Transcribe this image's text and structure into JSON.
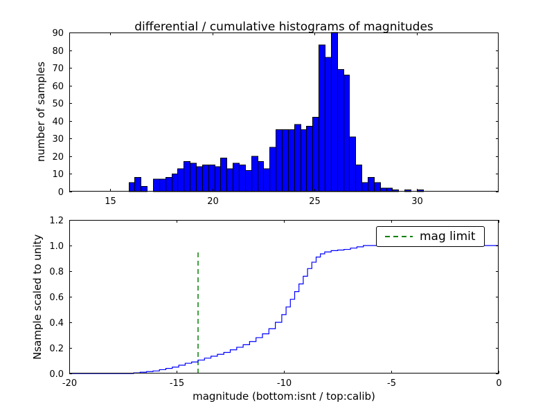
{
  "figure": {
    "background": "#ffffff"
  },
  "legend": {
    "label": "mag limit"
  },
  "chart_data": [
    {
      "type": "bar",
      "title": "differential / cumulative histograms of magnitudes",
      "xlabel": "",
      "ylabel": "number of samples",
      "xlim": [
        13,
        34
      ],
      "ylim": [
        0,
        90
      ],
      "grid": false,
      "xticks": [
        15,
        20,
        25,
        30
      ],
      "xtick_labels": [
        "15",
        "20",
        "25",
        "30"
      ],
      "yticks": [
        0,
        10,
        20,
        30,
        40,
        50,
        60,
        70,
        80,
        90
      ],
      "ytick_labels": [
        "0",
        "10",
        "20",
        "30",
        "40",
        "50",
        "60",
        "70",
        "80",
        "90"
      ],
      "bar_color": "#0000ff",
      "edge_color": "#000000",
      "bin_start": 15.9,
      "bin_width": 0.3,
      "counts": [
        5,
        8,
        3,
        0,
        7,
        7,
        8,
        10,
        13,
        17,
        16,
        14,
        15,
        15,
        14,
        19,
        13,
        16,
        15,
        12,
        20,
        17,
        13,
        25,
        35,
        35,
        35,
        38,
        35,
        37,
        42,
        83,
        76,
        90,
        69,
        66,
        31,
        15,
        5,
        8,
        5,
        2,
        2,
        1,
        0,
        1,
        0,
        1
      ]
    },
    {
      "type": "line",
      "title": "",
      "xlabel": "magnitude (bottom:isnt / top:calib)",
      "ylabel": "Nsample scaled to unity",
      "xlim": [
        -20,
        0
      ],
      "ylim": [
        0,
        1.2
      ],
      "grid": false,
      "step": true,
      "xticks": [
        -20,
        -15,
        -10,
        -5,
        0
      ],
      "xtick_labels": [
        "-20",
        "-15",
        "-10",
        "-5",
        "0"
      ],
      "yticks": [
        0,
        0.2,
        0.4,
        0.6,
        0.8,
        1.0,
        1.2
      ],
      "ytick_labels": [
        "0.0",
        "0.2",
        "0.4",
        "0.6",
        "0.8",
        "1.0",
        "1.2"
      ],
      "line_color": "#0000ff",
      "x": [
        -20,
        -17.3,
        -17.0,
        -16.7,
        -16.4,
        -16.1,
        -15.8,
        -15.5,
        -15.2,
        -14.9,
        -14.6,
        -14.3,
        -14.0,
        -13.7,
        -13.4,
        -13.1,
        -12.8,
        -12.5,
        -12.2,
        -11.9,
        -11.6,
        -11.3,
        -11.0,
        -10.7,
        -10.4,
        -10.1,
        -9.9,
        -9.7,
        -9.5,
        -9.3,
        -9.1,
        -8.9,
        -8.7,
        -8.5,
        -8.3,
        -8.1,
        -7.8,
        -7.5,
        -7.2,
        -6.9,
        -6.6,
        -6.3,
        0
      ],
      "y": [
        0,
        0,
        0.005,
        0.01,
        0.015,
        0.02,
        0.03,
        0.04,
        0.05,
        0.065,
        0.08,
        0.09,
        0.105,
        0.12,
        0.135,
        0.15,
        0.165,
        0.185,
        0.205,
        0.225,
        0.25,
        0.28,
        0.31,
        0.35,
        0.4,
        0.46,
        0.52,
        0.58,
        0.64,
        0.7,
        0.76,
        0.82,
        0.87,
        0.91,
        0.935,
        0.95,
        0.96,
        0.965,
        0.97,
        0.98,
        0.99,
        1.0,
        1.0
      ],
      "vline": {
        "x": -14,
        "y0": 0,
        "y1": 0.97,
        "color": "#008000",
        "style": "dashed",
        "label": "mag limit"
      }
    }
  ]
}
